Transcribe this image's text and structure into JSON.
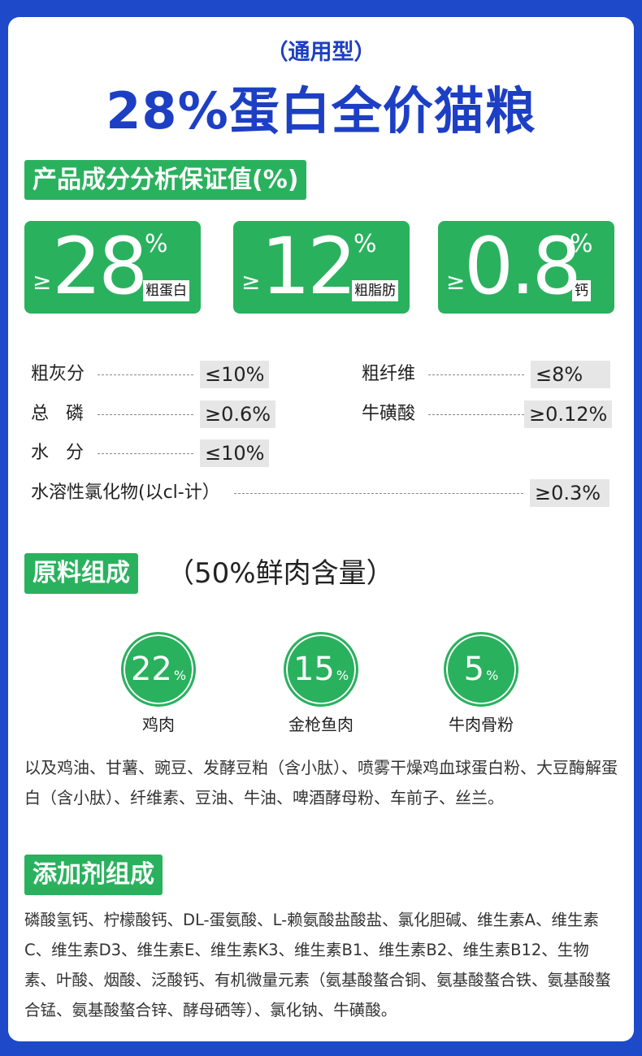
{
  "header": {
    "subtitle": "（通用型）",
    "title": "28%蛋白全价猫粮"
  },
  "analysis": {
    "section_title": "产品成分分析保证值(%)",
    "stats": [
      {
        "prefix": "≥",
        "value": "28",
        "unit": "%",
        "label": "粗蛋白"
      },
      {
        "prefix": "≥",
        "value": "12",
        "unit": "%",
        "label": "粗脂肪"
      },
      {
        "prefix": "≥",
        "value": "0.8",
        "unit": "%",
        "label": "钙"
      }
    ],
    "rows": [
      {
        "label": "粗灰分",
        "value": "≤10%"
      },
      {
        "label": "粗纤维",
        "value": "≤8%"
      },
      {
        "label": "总   磷",
        "value": "≥0.6%"
      },
      {
        "label": "牛磺酸",
        "value": "≥0.12%"
      },
      {
        "label": "水   分",
        "value": "≤10%"
      },
      {
        "label": "水溶性氯化物(以cl-计）",
        "value": "≥0.3%"
      }
    ]
  },
  "ingredients": {
    "section_title": "原料组成",
    "section_extra": "（50%鲜肉含量）",
    "meats": [
      {
        "value": "22",
        "unit": "%",
        "label": "鸡肉"
      },
      {
        "value": "15",
        "unit": "%",
        "label": "金枪鱼肉"
      },
      {
        "value": "5",
        "unit": "%",
        "label": "牛肉骨粉"
      }
    ],
    "text": "以及鸡油、甘薯、豌豆、发酵豆粕（含小肽）、喷雾干燥鸡血球蛋白粉、大豆酶解蛋白（含小肽）、纤维素、豆油、牛油、啤酒酵母粉、车前子、丝兰。"
  },
  "additives": {
    "section_title": "添加剂组成",
    "text": "磷酸氢钙、柠檬酸钙、DL-蛋氨酸、L-赖氨酸盐酸盐、氯化胆碱、维生素A、维生素C、维生素D3、维生素E、维生素K3、维生素B1、维生素B2、维生素B12、生物素、叶酸、烟酸、泛酸钙、有机微量元素（氨基酸螯合铜、氨基酸螯合铁、氨基酸螯合锰、氨基酸螯合锌、酵母硒等）、氯化钠、牛磺酸。"
  },
  "colors": {
    "background": "#1e49c8",
    "title": "#1d3fc4",
    "accent_green": "#2ab15e",
    "value_bg": "#e6e6e6"
  }
}
